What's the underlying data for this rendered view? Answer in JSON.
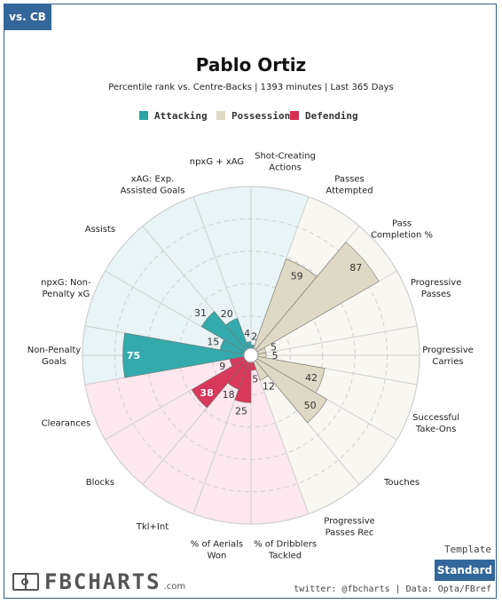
{
  "tab": {
    "label": "vs. CB"
  },
  "chart_data": {
    "type": "polar_bar",
    "title": "Pablo Ortiz",
    "subtitle": "Percentile rank vs. Centre-Backs | 1393 minutes | Last 365 Days",
    "legend": [
      {
        "name": "Attacking",
        "color": "#2aa5a8"
      },
      {
        "name": "Possession",
        "color": "#ded9c4"
      },
      {
        "name": "Defending",
        "color": "#d62e53"
      }
    ],
    "radial_range": [
      0,
      100
    ],
    "gridlines": [
      20,
      40,
      60,
      80,
      100
    ],
    "categories": [
      {
        "label": "Shot-Creating Actions",
        "group": "Attacking",
        "value": 2
      },
      {
        "label": "Passes Attempted",
        "group": "Possession",
        "value": 59
      },
      {
        "label": "Pass Completion %",
        "group": "Possession",
        "value": 87
      },
      {
        "label": "Progressive Passes",
        "group": "Possession",
        "value": 5
      },
      {
        "label": "Progressive Carries",
        "group": "Possession",
        "value": 5
      },
      {
        "label": "Successful Take-Ons",
        "group": "Possession",
        "value": 42
      },
      {
        "label": "Touches",
        "group": "Possession",
        "value": 50
      },
      {
        "label": "Progressive Passes Rec",
        "group": "Possession",
        "value": 12
      },
      {
        "label": "% of Dribblers Tackled",
        "group": "Defending",
        "value": 5
      },
      {
        "label": "% of Aerials Won",
        "group": "Defending",
        "value": 25
      },
      {
        "label": "Tkl+Int",
        "group": "Defending",
        "value": 18
      },
      {
        "label": "Blocks",
        "group": "Defending",
        "value": 38
      },
      {
        "label": "Clearances",
        "group": "Defending",
        "value": 9
      },
      {
        "label": "Non-Penalty Goals",
        "group": "Attacking",
        "value": 75
      },
      {
        "label": "npxG: Non-Penalty xG",
        "group": "Attacking",
        "value": 15
      },
      {
        "label": "Assists",
        "group": "Attacking",
        "value": 31
      },
      {
        "label": "xAG: Exp. Assisted Goals",
        "group": "Attacking",
        "value": 20
      },
      {
        "label": "npxG + xAG",
        "group": "Attacking",
        "value": 4
      }
    ],
    "label_lines": [
      [
        "Shot-Creating",
        "Actions"
      ],
      [
        "Passes",
        "Attempted"
      ],
      [
        "Pass",
        "Completion %"
      ],
      [
        "Progressive",
        "Passes"
      ],
      [
        "Progressive",
        "Carries"
      ],
      [
        "Successful",
        "Take-Ons"
      ],
      [
        "Touches"
      ],
      [
        "Progressive",
        "Passes Rec"
      ],
      [
        "% of Dribblers",
        "Tackled"
      ],
      [
        "% of Aerials",
        "Won"
      ],
      [
        "Tkl+Int"
      ],
      [
        "Blocks"
      ],
      [
        "Clearances"
      ],
      [
        "Non-Penalty",
        "Goals"
      ],
      [
        "npxG: Non-",
        "Penalty xG"
      ],
      [
        "Assists"
      ],
      [
        "xAG: Exp.",
        "Assisted Goals"
      ],
      [
        "npxG + xAG"
      ]
    ]
  },
  "footer": {
    "template_label": "Template",
    "standard_button": "Standard",
    "logo_text": "FBCHARTS",
    "logo_suffix": ".com",
    "credit": "twitter: @fbcharts | Data: Opta/FBref"
  }
}
